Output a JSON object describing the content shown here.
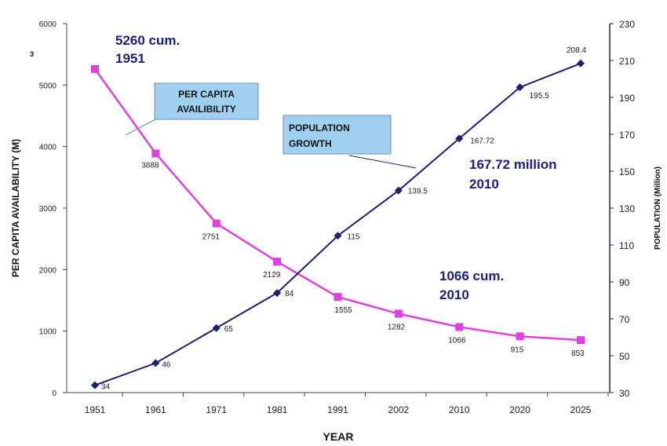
{
  "chart_data": {
    "type": "line",
    "categories": [
      "1951",
      "1961",
      "1971",
      "1981",
      "1991",
      "2002",
      "2010",
      "2020",
      "2025"
    ],
    "xlabel": "YEAR",
    "ylabel_left": "PER CAPITA AVAILABILITY (M)",
    "ylabel_left_superscript": "3",
    "ylabel_right": "POPULATION (Million)",
    "ylim_left": [
      0,
      6000
    ],
    "yticks_left": [
      "0",
      "1000",
      "2000",
      "3000",
      "4000",
      "5000",
      "6000"
    ],
    "ylim_right": [
      30,
      230
    ],
    "yticks_right": [
      "30",
      "50",
      "70",
      "90",
      "110",
      "130",
      "150",
      "170",
      "190",
      "210",
      "230"
    ],
    "series": [
      {
        "name": "PER CAPITA AVAILIBILITY",
        "axis": "left",
        "color": "#e040e0",
        "values": [
          5260,
          3888,
          2751,
          2129,
          1555,
          1282,
          1066,
          915,
          853
        ],
        "labels": [
          "",
          "3888",
          "2751",
          "2129",
          "1555",
          "1282",
          "1066",
          "915",
          "853"
        ]
      },
      {
        "name": "POPULATION GROWTH",
        "axis": "right",
        "color": "#1b1f6e",
        "values": [
          34,
          46,
          65,
          84,
          115,
          139.5,
          167.72,
          195.5,
          208.4
        ],
        "labels": [
          "34",
          "46",
          "65",
          "84",
          "115",
          "139.5",
          "167.72",
          "195.5",
          "208.4"
        ]
      }
    ],
    "annotations": [
      {
        "line1": "5260 cum.",
        "line2": "1951"
      },
      {
        "line1": "167.72 million",
        "line2": "2010"
      },
      {
        "line1": "1066 cum.",
        "line2": "2010"
      }
    ],
    "callouts": [
      {
        "line1": "PER CAPITA",
        "line2": "AVAILIBILITY"
      },
      {
        "line1": "POPULATION",
        "line2": "GROWTH"
      }
    ]
  }
}
